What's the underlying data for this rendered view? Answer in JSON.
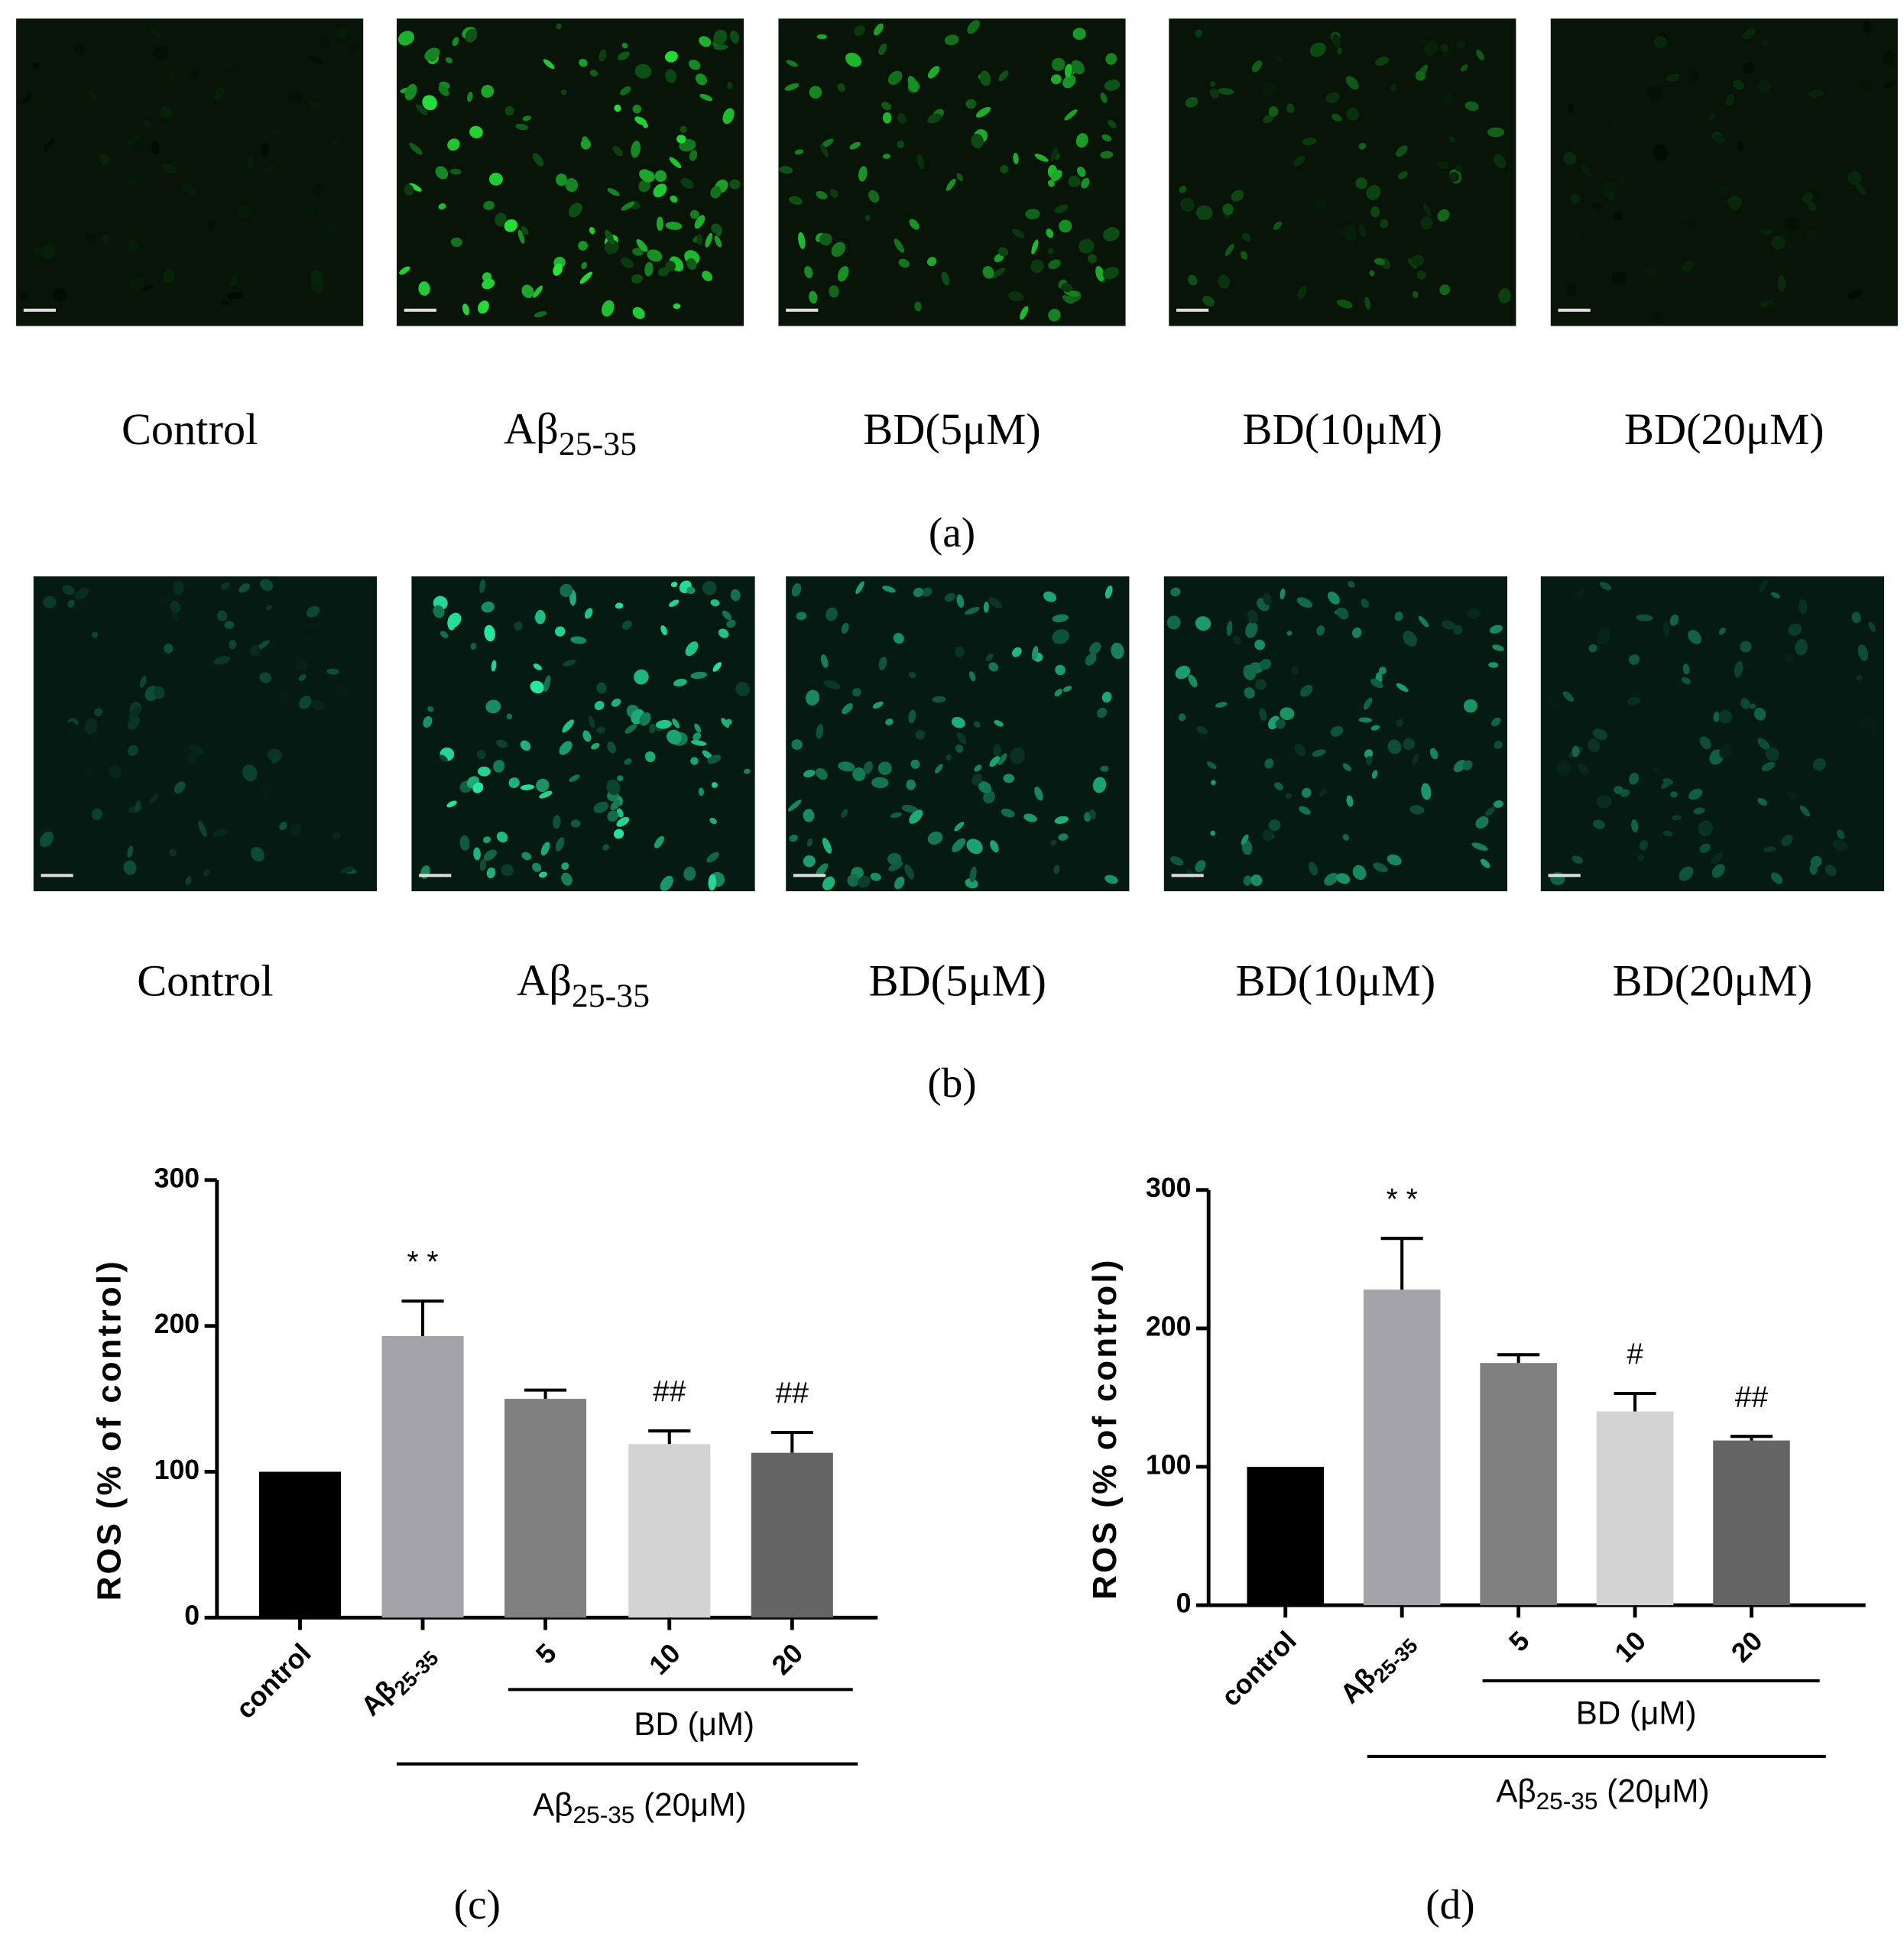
{
  "panels": {
    "a": {
      "label": "(a)",
      "captions": [
        "Control",
        "Aβ25-35",
        "BD(5μM)",
        "BD(10μM)",
        "BD(20μM)"
      ]
    },
    "b": {
      "label": "(b)",
      "captions": [
        "Control",
        "Aβ25-35",
        "BD(5μM)",
        "BD(10μM)",
        "BD(20μM)"
      ]
    }
  },
  "chart_data": [
    {
      "type": "bar",
      "panel_label": "(c)",
      "y_label": "ROS (% of control)",
      "categories": [
        "control",
        "Aβ25-35",
        "5",
        "10",
        "20"
      ],
      "values": [
        100,
        193,
        150,
        119,
        113
      ],
      "errors": [
        null,
        24,
        6,
        9,
        14
      ],
      "colors": [
        "#000000",
        "#a3a3a8",
        "#808080",
        "#d3d3d3",
        "#646464"
      ],
      "significance": [
        null,
        "* *",
        null,
        "##",
        "##"
      ],
      "group_labels": [
        "BD (μM)",
        "Aβ25-35 (20μM)"
      ],
      "ylim": [
        0,
        300
      ],
      "yticks": [
        0,
        100,
        200,
        300
      ]
    },
    {
      "type": "bar",
      "panel_label": "(d)",
      "y_label": "ROS (% of control)",
      "categories": [
        "control",
        "Aβ25-35",
        "5",
        "10",
        "20"
      ],
      "values": [
        100,
        228,
        175,
        140,
        119
      ],
      "errors": [
        null,
        37,
        6,
        13,
        3
      ],
      "colors": [
        "#000000",
        "#a3a3a8",
        "#808080",
        "#d3d3d3",
        "#646464"
      ],
      "significance": [
        null,
        "* *",
        null,
        "#",
        "##"
      ],
      "group_labels": [
        "BD (μM)",
        "Aβ25-35 (20μM)"
      ],
      "ylim": [
        0,
        300
      ],
      "yticks": [
        0,
        100,
        200,
        300
      ]
    }
  ]
}
